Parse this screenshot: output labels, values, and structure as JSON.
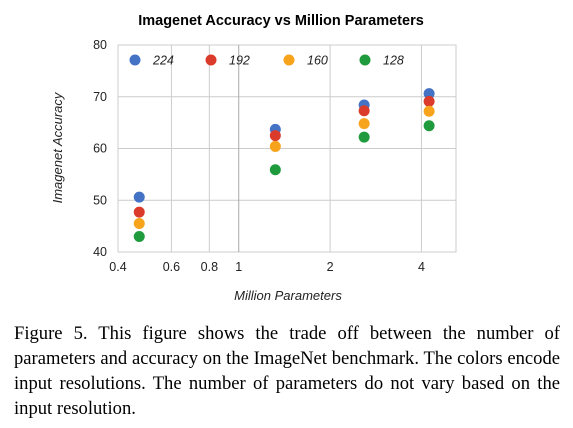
{
  "chart_data": {
    "type": "scatter",
    "title": "Imagenet Accuracy vs Million Parameters",
    "xlabel": "Million Parameters",
    "ylabel": "Imagenet Accuracy",
    "xscale": "log",
    "xlim": [
      0.4,
      5.2
    ],
    "ylim": [
      40,
      80
    ],
    "xticks": [
      0.4,
      0.6,
      0.8,
      1,
      2,
      4
    ],
    "xtick_labels": [
      "0.4",
      "0.6",
      "0.8",
      "1",
      "2",
      "4"
    ],
    "yticks": [
      40,
      50,
      60,
      70,
      80
    ],
    "ytick_labels": [
      "40",
      "50",
      "60",
      "70",
      "80"
    ],
    "grid": true,
    "legend_position": "top",
    "x": [
      0.47,
      1.32,
      2.59,
      4.24
    ],
    "series": [
      {
        "name": "224",
        "color": "#4472c4",
        "values": [
          50.6,
          63.7,
          68.4,
          70.6
        ]
      },
      {
        "name": "192",
        "color": "#db3b2b",
        "values": [
          47.7,
          62.5,
          67.3,
          69.1
        ]
      },
      {
        "name": "160",
        "color": "#f7a31c",
        "values": [
          45.5,
          60.4,
          64.8,
          67.2
        ]
      },
      {
        "name": "128",
        "color": "#1f9a3c",
        "values": [
          43.0,
          55.9,
          62.2,
          64.4
        ]
      }
    ]
  },
  "caption": "Figure 5. This figure shows the trade off between the number of parameters and accuracy on the ImageNet benchmark. The colors encode input resolutions. The number of parameters do not vary based on the input resolution."
}
